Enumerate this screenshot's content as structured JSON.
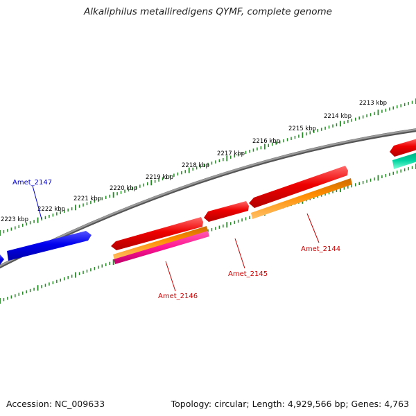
{
  "title": "Alkaliphilus metalliredigens QYMF, complete genome",
  "footer": {
    "accession_label": "Accession: NC_009633",
    "topology_label": "Topology: circular; Length: 4,929,566 bp; Genes: 4,763"
  },
  "scale_labels": [
    "2213 kbp",
    "2214 kbp",
    "2215 kbp",
    "2216 kbp",
    "2217 kbp",
    "2218 kbp",
    "2219 kbp",
    "2220 kbp",
    "2221 kbp",
    "2222 kbp",
    "2223 kbp"
  ],
  "gene_labels": [
    {
      "text": "Amet_2147",
      "color": "#0000cc"
    },
    {
      "text": "Amet_2146",
      "color": "#cc0000"
    },
    {
      "text": "Amet_2145",
      "color": "#cc0000"
    },
    {
      "text": "Amet_2144",
      "color": "#cc0000"
    }
  ],
  "colors": {
    "backbone": "#808080",
    "tick": "#228b22",
    "blue_gene": "#0000ee",
    "red_gene": "#ee0000",
    "orange_feature": "#ff8c00",
    "pink_feature": "#ff1493",
    "teal_feature": "#00cc99"
  }
}
